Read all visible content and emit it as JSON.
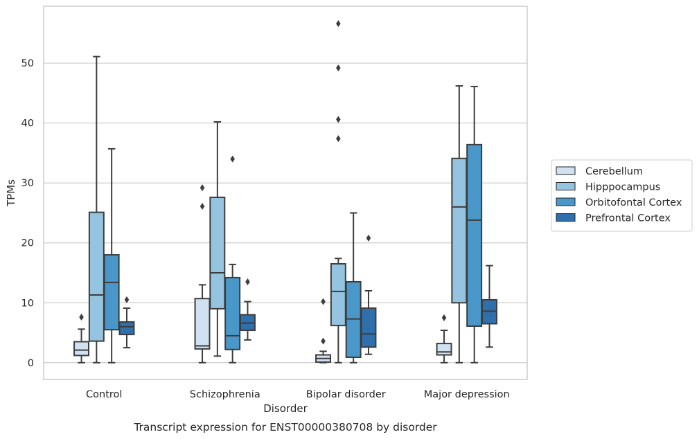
{
  "caption": "Transcript expression for ENST00000380708 by disorder",
  "chart_data": {
    "type": "boxplot",
    "xlabel": "Disorder",
    "ylabel": "TPMs",
    "ylim": [
      -2.8,
      59.5
    ],
    "yticks": [
      0,
      10,
      20,
      30,
      40,
      50
    ],
    "grid": "horizontal",
    "legend_position": "right-outside",
    "categories": [
      "Control",
      "Schizophrenia",
      "Bipolar disorder",
      "Major depression"
    ],
    "series": [
      {
        "name": "Cerebellum",
        "color": "#d0e1f2",
        "boxes": [
          {
            "whislo": 0.0,
            "q1": 1.2,
            "med": 2.1,
            "q3": 3.5,
            "whishi": 5.6,
            "fliers": [
              7.6
            ]
          },
          {
            "whislo": 0.0,
            "q1": 2.3,
            "med": 2.8,
            "q3": 10.7,
            "whishi": 13.0,
            "fliers": [
              26.1,
              29.2
            ]
          },
          {
            "whislo": 0.0,
            "q1": 0.1,
            "med": 0.7,
            "q3": 1.3,
            "whishi": 1.9,
            "fliers": [
              3.6,
              10.2
            ]
          },
          {
            "whislo": 0.0,
            "q1": 1.3,
            "med": 1.8,
            "q3": 3.2,
            "whishi": 5.4,
            "fliers": [
              7.5
            ]
          }
        ]
      },
      {
        "name": "Hipppocampus",
        "color": "#94c4df",
        "boxes": [
          {
            "whislo": 0.0,
            "q1": 3.6,
            "med": 11.3,
            "q3": 25.1,
            "whishi": 51.1,
            "fliers": []
          },
          {
            "whislo": 1.1,
            "q1": 9.0,
            "med": 15.0,
            "q3": 27.6,
            "whishi": 40.2,
            "fliers": []
          },
          {
            "whislo": 0.0,
            "q1": 6.2,
            "med": 11.9,
            "q3": 16.5,
            "whishi": 17.4,
            "fliers": [
              37.4,
              40.6,
              49.2,
              56.6
            ]
          },
          {
            "whislo": 0.0,
            "q1": 10.0,
            "med": 26.0,
            "q3": 34.1,
            "whishi": 46.2,
            "fliers": []
          }
        ]
      },
      {
        "name": "Orbitofontal Cortex",
        "color": "#4a98c9",
        "boxes": [
          {
            "whislo": 0.0,
            "q1": 5.5,
            "med": 13.4,
            "q3": 18.0,
            "whishi": 35.7,
            "fliers": []
          },
          {
            "whislo": 0.0,
            "q1": 2.2,
            "med": 4.5,
            "q3": 14.2,
            "whishi": 16.4,
            "fliers": [
              34.0
            ]
          },
          {
            "whislo": 0.0,
            "q1": 0.9,
            "med": 7.3,
            "q3": 13.5,
            "whishi": 25.0,
            "fliers": []
          },
          {
            "whislo": 0.0,
            "q1": 6.1,
            "med": 23.8,
            "q3": 36.4,
            "whishi": 46.1,
            "fliers": []
          }
        ]
      },
      {
        "name": "Prefrontal Cortex",
        "color": "#2e6fac",
        "boxes": [
          {
            "whislo": 2.5,
            "q1": 4.7,
            "med": 6.0,
            "q3": 6.8,
            "whishi": 9.1,
            "fliers": [
              10.5
            ]
          },
          {
            "whislo": 3.8,
            "q1": 5.4,
            "med": 6.6,
            "q3": 8.0,
            "whishi": 10.2,
            "fliers": [
              13.5
            ]
          },
          {
            "whislo": 1.4,
            "q1": 2.6,
            "med": 4.8,
            "q3": 9.1,
            "whishi": 12.0,
            "fliers": [
              20.8
            ]
          },
          {
            "whislo": 2.6,
            "q1": 6.5,
            "med": 8.6,
            "q3": 10.5,
            "whishi": 16.2,
            "fliers": []
          }
        ]
      }
    ]
  }
}
